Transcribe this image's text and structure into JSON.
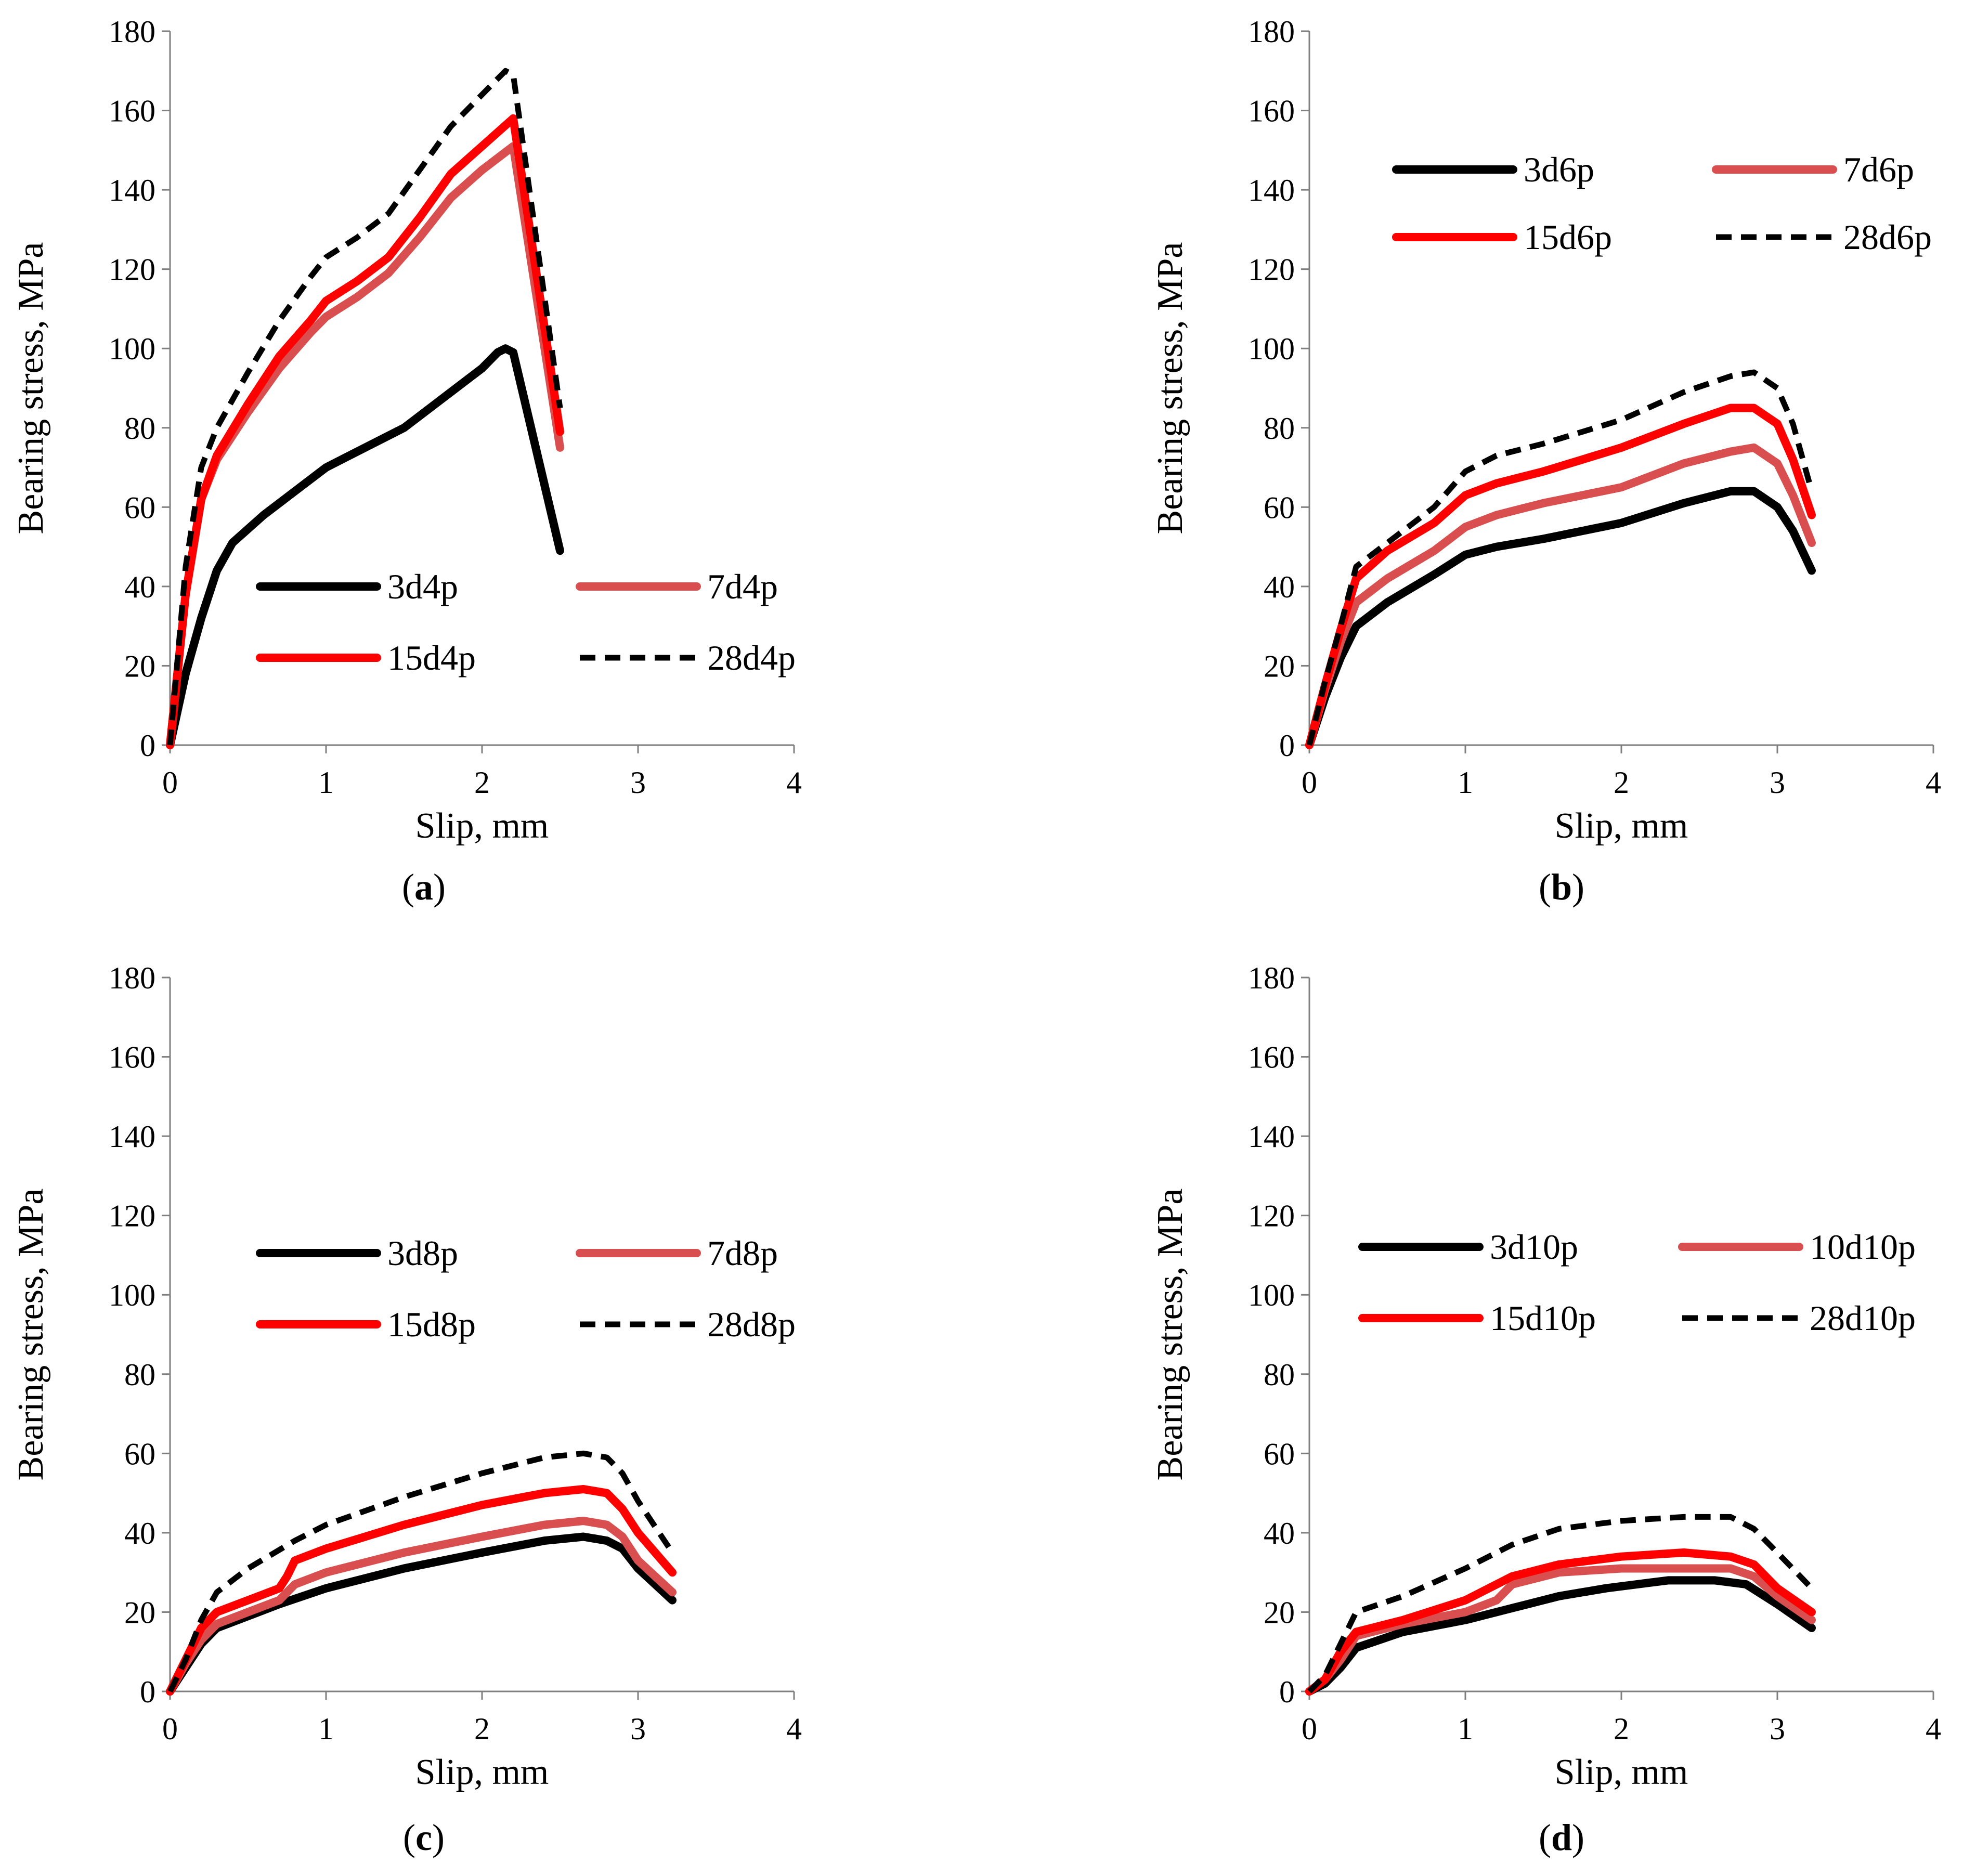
{
  "chart_data": [
    {
      "type": "line",
      "panel": "a",
      "caption_letter": "a",
      "xlabel": "Slip, mm",
      "ylabel": "Bearing stress, MPa",
      "xlim": [
        0,
        4
      ],
      "ylim": [
        0,
        180
      ],
      "xticks": [
        0,
        1,
        2,
        3,
        4
      ],
      "yticks": [
        0,
        20,
        40,
        60,
        80,
        100,
        120,
        140,
        160,
        180
      ],
      "grid": false,
      "legend": [
        "3d4p",
        "7d4p",
        "15d4p",
        "28d4p"
      ],
      "series": [
        {
          "name": "3d4p",
          "color": "#000000",
          "dash": "solid",
          "x": [
            0,
            0.1,
            0.2,
            0.3,
            0.4,
            0.6,
            0.8,
            1.0,
            1.2,
            1.5,
            1.8,
            2.0,
            2.1,
            2.15,
            2.2,
            2.5
          ],
          "y": [
            0,
            18,
            32,
            44,
            51,
            58,
            64,
            70,
            74,
            80,
            89,
            95,
            99,
            100,
            99,
            49
          ]
        },
        {
          "name": "7d4p",
          "color": "#d94f4f",
          "dash": "solid",
          "x": [
            0,
            0.1,
            0.2,
            0.3,
            0.5,
            0.7,
            0.9,
            1.0,
            1.2,
            1.4,
            1.6,
            1.8,
            2.0,
            2.2,
            2.5
          ],
          "y": [
            0,
            38,
            62,
            72,
            84,
            95,
            104,
            108,
            113,
            119,
            128,
            138,
            145,
            151,
            75
          ]
        },
        {
          "name": "15d4p",
          "color": "#ff0000",
          "dash": "solid",
          "x": [
            0,
            0.1,
            0.2,
            0.3,
            0.5,
            0.7,
            0.9,
            1.0,
            1.2,
            1.4,
            1.6,
            1.8,
            2.0,
            2.2,
            2.5
          ],
          "y": [
            0,
            38,
            62,
            73,
            86,
            98,
            107,
            112,
            117,
            123,
            133,
            144,
            151,
            158,
            79
          ]
        },
        {
          "name": "28d4p",
          "color": "#000000",
          "dash": "dashed",
          "x": [
            0,
            0.1,
            0.2,
            0.3,
            0.5,
            0.7,
            0.9,
            1.0,
            1.2,
            1.4,
            1.6,
            1.8,
            2.0,
            2.15,
            2.2,
            2.5
          ],
          "y": [
            0,
            45,
            70,
            80,
            94,
            107,
            118,
            123,
            128,
            134,
            145,
            156,
            164,
            170,
            169,
            85
          ]
        }
      ]
    },
    {
      "type": "line",
      "panel": "b",
      "caption_letter": "b",
      "xlabel": "Slip, mm",
      "ylabel": "Bearing stress, MPa",
      "xlim": [
        0,
        4
      ],
      "ylim": [
        0,
        180
      ],
      "xticks": [
        0,
        1,
        2,
        3,
        4
      ],
      "yticks": [
        0,
        20,
        40,
        60,
        80,
        100,
        120,
        140,
        160,
        180
      ],
      "grid": false,
      "legend": [
        "3d6p",
        "7d6p",
        "15d6p",
        "28d6p"
      ],
      "series": [
        {
          "name": "3d6p",
          "color": "#000000",
          "dash": "solid",
          "x": [
            0,
            0.1,
            0.2,
            0.3,
            0.5,
            0.8,
            1.0,
            1.2,
            1.5,
            2.0,
            2.4,
            2.7,
            2.85,
            3.0,
            3.1,
            3.22
          ],
          "y": [
            0,
            12,
            22,
            30,
            36,
            43,
            48,
            50,
            52,
            56,
            61,
            64,
            64,
            60,
            54,
            44
          ]
        },
        {
          "name": "7d6p",
          "color": "#d94f4f",
          "dash": "solid",
          "x": [
            0,
            0.1,
            0.2,
            0.3,
            0.5,
            0.8,
            1.0,
            1.2,
            1.5,
            2.0,
            2.4,
            2.7,
            2.85,
            3.0,
            3.1,
            3.22
          ],
          "y": [
            0,
            14,
            26,
            36,
            42,
            49,
            55,
            58,
            61,
            65,
            71,
            74,
            75,
            71,
            63,
            51
          ]
        },
        {
          "name": "15d6p",
          "color": "#ff0000",
          "dash": "solid",
          "x": [
            0,
            0.1,
            0.2,
            0.3,
            0.5,
            0.8,
            1.0,
            1.2,
            1.5,
            2.0,
            2.4,
            2.7,
            2.85,
            3.0,
            3.1,
            3.22
          ],
          "y": [
            0,
            15,
            29,
            42,
            49,
            56,
            63,
            66,
            69,
            75,
            81,
            85,
            85,
            81,
            72,
            58
          ]
        },
        {
          "name": "28d6p",
          "color": "#000000",
          "dash": "dashed",
          "x": [
            0,
            0.1,
            0.2,
            0.3,
            0.5,
            0.8,
            1.0,
            1.2,
            1.5,
            2.0,
            2.4,
            2.7,
            2.85,
            3.0,
            3.1,
            3.22
          ],
          "y": [
            0,
            16,
            30,
            45,
            51,
            60,
            69,
            73,
            76,
            82,
            89,
            93,
            94,
            90,
            81,
            64
          ]
        }
      ]
    },
    {
      "type": "line",
      "panel": "c",
      "caption_letter": "c",
      "xlabel": "Slip, mm",
      "ylabel": "Bearing stress, MPa",
      "xlim": [
        0,
        4
      ],
      "ylim": [
        0,
        180
      ],
      "xticks": [
        0,
        1,
        2,
        3,
        4
      ],
      "yticks": [
        0,
        20,
        40,
        60,
        80,
        100,
        120,
        140,
        160,
        180
      ],
      "grid": false,
      "legend": [
        "3d8p",
        "7d8p",
        "15d8p",
        "28d8p"
      ],
      "series": [
        {
          "name": "3d8p",
          "color": "#000000",
          "dash": "solid",
          "x": [
            0,
            0.1,
            0.2,
            0.3,
            0.5,
            0.7,
            1.0,
            1.5,
            2.0,
            2.4,
            2.65,
            2.8,
            2.9,
            3.0,
            3.22
          ],
          "y": [
            0,
            6,
            12,
            16,
            19,
            22,
            26,
            31,
            35,
            38,
            39,
            38,
            36,
            31,
            23
          ]
        },
        {
          "name": "7d8p",
          "color": "#d94f4f",
          "dash": "solid",
          "x": [
            0,
            0.1,
            0.2,
            0.3,
            0.5,
            0.7,
            0.75,
            0.8,
            1.0,
            1.5,
            2.0,
            2.4,
            2.65,
            2.8,
            2.9,
            3.0,
            3.22
          ],
          "y": [
            0,
            7,
            13,
            17,
            20,
            23,
            25,
            27,
            30,
            35,
            39,
            42,
            43,
            42,
            39,
            33,
            25
          ]
        },
        {
          "name": "15d8p",
          "color": "#ff0000",
          "dash": "solid",
          "x": [
            0,
            0.1,
            0.2,
            0.3,
            0.5,
            0.7,
            0.75,
            0.8,
            1.0,
            1.5,
            2.0,
            2.4,
            2.65,
            2.8,
            2.9,
            3.0,
            3.22
          ],
          "y": [
            0,
            8,
            16,
            20,
            23,
            26,
            29,
            33,
            36,
            42,
            47,
            50,
            51,
            50,
            46,
            40,
            30
          ]
        },
        {
          "name": "28d8p",
          "color": "#000000",
          "dash": "dashed",
          "x": [
            0,
            0.1,
            0.2,
            0.3,
            0.5,
            0.8,
            1.0,
            1.5,
            2.0,
            2.4,
            2.65,
            2.8,
            2.9,
            3.0,
            3.22
          ],
          "y": [
            0,
            8,
            18,
            25,
            31,
            38,
            42,
            49,
            55,
            59,
            60,
            59,
            55,
            48,
            35
          ]
        }
      ]
    },
    {
      "type": "line",
      "panel": "d",
      "caption_letter": "d",
      "xlabel": "Slip, mm",
      "ylabel": "Bearing stress, MPa",
      "xlim": [
        0,
        4
      ],
      "ylim": [
        0,
        180
      ],
      "xticks": [
        0,
        1,
        2,
        3,
        4
      ],
      "yticks": [
        0,
        20,
        40,
        60,
        80,
        100,
        120,
        140,
        160,
        180
      ],
      "grid": false,
      "legend": [
        "3d10p",
        "10d10p",
        "15d10p",
        "28d10p"
      ],
      "series": [
        {
          "name": "3d10p",
          "color": "#000000",
          "dash": "solid",
          "x": [
            0,
            0.1,
            0.2,
            0.3,
            0.6,
            1.0,
            1.3,
            1.6,
            1.9,
            2.3,
            2.6,
            2.8,
            3.0,
            3.22
          ],
          "y": [
            0,
            2,
            6,
            11,
            15,
            18,
            21,
            24,
            26,
            28,
            28,
            27,
            22,
            16
          ]
        },
        {
          "name": "10d10p",
          "color": "#d94f4f",
          "dash": "solid",
          "x": [
            0,
            0.1,
            0.2,
            0.3,
            0.6,
            1.0,
            1.2,
            1.3,
            1.6,
            2.0,
            2.4,
            2.7,
            2.85,
            3.0,
            3.22
          ],
          "y": [
            0,
            3,
            8,
            14,
            17,
            20,
            23,
            27,
            30,
            31,
            31,
            31,
            29,
            24,
            18
          ]
        },
        {
          "name": "15d10p",
          "color": "#ff0000",
          "dash": "solid",
          "x": [
            0,
            0.1,
            0.2,
            0.3,
            0.6,
            1.0,
            1.3,
            1.6,
            2.0,
            2.4,
            2.7,
            2.85,
            3.0,
            3.22
          ],
          "y": [
            0,
            3,
            10,
            15,
            18,
            23,
            29,
            32,
            34,
            35,
            34,
            32,
            26,
            20
          ]
        },
        {
          "name": "28d10p",
          "color": "#000000",
          "dash": "dashed",
          "x": [
            0,
            0.1,
            0.2,
            0.3,
            0.6,
            1.0,
            1.3,
            1.6,
            2.0,
            2.4,
            2.7,
            2.85,
            3.0,
            3.22
          ],
          "y": [
            0,
            4,
            12,
            20,
            24,
            31,
            37,
            41,
            43,
            44,
            44,
            41,
            35,
            26
          ]
        }
      ]
    }
  ]
}
